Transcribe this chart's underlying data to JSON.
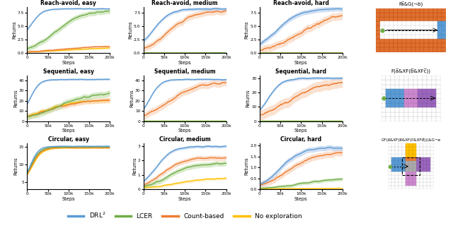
{
  "titles": [
    [
      "Reach-avoid, easy",
      "Reach-avoid, medium",
      "Reach-avoid, hard"
    ],
    [
      "Sequential, easy",
      "Sequential, medium",
      "Sequential, hard"
    ],
    [
      "Circular, easy",
      "Circular, medium",
      "Circular, hard"
    ]
  ],
  "ylims": [
    [
      [
        0,
        8.5
      ],
      [
        0,
        8.5
      ],
      [
        0,
        8.5
      ]
    ],
    [
      [
        0,
        45
      ],
      [
        0,
        45
      ],
      [
        0,
        32
      ]
    ],
    [
      [
        3,
        16
      ],
      [
        0,
        3.2
      ],
      [
        0,
        2.1
      ]
    ]
  ],
  "yticks": [
    [
      [
        0.0,
        2.5,
        5.0,
        7.5
      ],
      [
        0.0,
        2.5,
        5.0,
        7.5
      ],
      [
        0.0,
        2.5,
        5.0,
        7.5
      ]
    ],
    [
      [
        0,
        10,
        20,
        30,
        40
      ],
      [
        0,
        10,
        20,
        30,
        40
      ],
      [
        0,
        10,
        20,
        30
      ]
    ],
    [
      [
        5,
        10,
        15
      ],
      [
        0,
        1,
        2,
        3
      ],
      [
        0,
        0.5,
        1.0,
        1.5,
        2.0
      ]
    ]
  ],
  "xticks": [
    0,
    50000,
    100000,
    150000,
    200000
  ],
  "xticklabels": [
    "0",
    "50k",
    "100k",
    "150k",
    "200k"
  ],
  "colors": {
    "drl2": "#5b9bd5",
    "lcer": "#70ad47",
    "count": "#ed7d31",
    "noexp": "#ffc000",
    "drl2_fill": "#aec6e8",
    "lcer_fill": "#b8d9a0",
    "count_fill": "#f8c9aa",
    "noexp_fill": "#ffe699"
  },
  "figure_width": 6.4,
  "figure_height": 3.4,
  "dpi": 100
}
